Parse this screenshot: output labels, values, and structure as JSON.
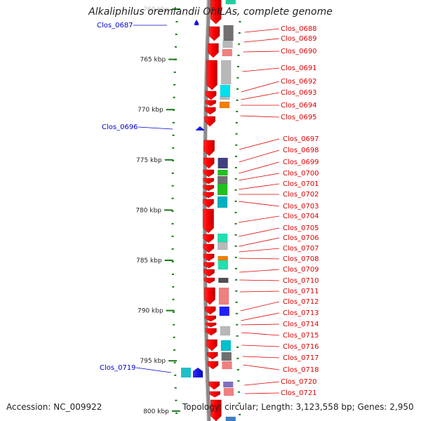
{
  "title": "Alkaliphilus oremlandii OhILAs, complete genome",
  "footer": {
    "accession": "Accession: NC_009922",
    "summary": "Topology: circular; Length: 3,123,558 bp; Genes: 2,950"
  },
  "scale": {
    "ticks": [
      {
        "label": "760 kbp"
      },
      {
        "label": "765 kbp"
      },
      {
        "label": "770 kbp"
      },
      {
        "label": "775 kbp"
      },
      {
        "label": "780 kbp"
      },
      {
        "label": "785 kbp"
      },
      {
        "label": "790 kbp"
      },
      {
        "label": "795 kbp"
      },
      {
        "label": "800 kbp"
      }
    ]
  },
  "colors": {
    "backbone": "#8a8a8a",
    "forward_gene": "#ff0000",
    "reverse_gene": "#0000ff",
    "left_label": "#0000cc",
    "right_label": "#dd0000",
    "tick": "#1a7a1a"
  },
  "left_labels": [
    {
      "text": "Clos_0687",
      "color_hex": "#2020ff"
    },
    {
      "text": "Clos_0696",
      "color_hex": "#2020ff"
    },
    {
      "text": "Clos_0719",
      "color_hex": "#00a0b0"
    }
  ],
  "right_labels": [
    {
      "text": "Clos_0688",
      "color_hex": "#707070"
    },
    {
      "text": "Clos_0689",
      "color_hex": "#b8b8b8"
    },
    {
      "text": "Clos_0690",
      "color_hex": "#f08080"
    },
    {
      "text": "Clos_0691",
      "color_hex": "#b8b8b8"
    },
    {
      "text": "Clos_0692",
      "color_hex": "#00e0f0"
    },
    {
      "text": "Clos_0693",
      "color_hex": "#b8b8b8"
    },
    {
      "text": "Clos_0694",
      "color_hex": "#f08000"
    },
    {
      "text": "Clos_0695",
      "color_hex": ""
    },
    {
      "text": "Clos_0697",
      "color_hex": ""
    },
    {
      "text": "Clos_0698",
      "color_hex": "#404080"
    },
    {
      "text": "Clos_0699",
      "color_hex": "#20c020"
    },
    {
      "text": "Clos_0700",
      "color_hex": "#707070"
    },
    {
      "text": "Clos_0701",
      "color_hex": "#20c020"
    },
    {
      "text": "Clos_0702",
      "color_hex": "#00b0c0"
    },
    {
      "text": "Clos_0703",
      "color_hex": ""
    },
    {
      "text": "Clos_0704",
      "color_hex": ""
    },
    {
      "text": "Clos_0705",
      "color_hex": "#20e0b0"
    },
    {
      "text": "Clos_0706",
      "color_hex": "#b8b8b8"
    },
    {
      "text": "Clos_0707",
      "color_hex": ""
    },
    {
      "text": "Clos_0708",
      "color_hex": "#f08000"
    },
    {
      "text": "Clos_0709",
      "color_hex": "#20e0b0"
    },
    {
      "text": "Clos_0710",
      "color_hex": "#505050"
    },
    {
      "text": "Clos_0711",
      "color_hex": "#f08080"
    },
    {
      "text": "Clos_0712",
      "color_hex": "#2020ff"
    },
    {
      "text": "Clos_0713",
      "color_hex": "#b8b8b8"
    },
    {
      "text": "Clos_0714",
      "color_hex": ""
    },
    {
      "text": "Clos_0715",
      "color_hex": "#b8b8b8"
    },
    {
      "text": "Clos_0716",
      "color_hex": "#00c0d0"
    },
    {
      "text": "Clos_0717",
      "color_hex": "#707070"
    },
    {
      "text": "Clos_0718",
      "color_hex": "#f08080"
    },
    {
      "text": "Clos_0720",
      "color_hex": "#8070c0"
    },
    {
      "text": "Clos_0721",
      "color_hex": "#f08080"
    }
  ]
}
